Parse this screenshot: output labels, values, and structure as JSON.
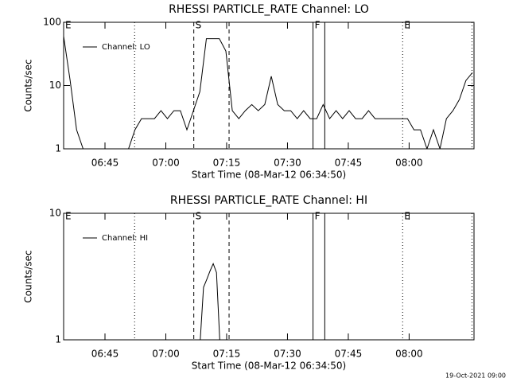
{
  "chart_data": [
    {
      "type": "line",
      "title": "RHESSI PARTICLE_RATE Channel: LO",
      "xlabel": "Start Time (08-Mar-12 06:34:50)",
      "ylabel": "Counts/sec",
      "log_y": true,
      "xlim": [
        394.8,
        496
      ],
      "ylim": [
        1,
        100
      ],
      "yticks": [
        1,
        10,
        100
      ],
      "xticks": [
        {
          "value": 405,
          "label": "06:45"
        },
        {
          "value": 420,
          "label": "07:00"
        },
        {
          "value": 435,
          "label": "07:15"
        },
        {
          "value": 450,
          "label": "07:30"
        },
        {
          "value": 465,
          "label": "07:45"
        },
        {
          "value": 480,
          "label": "08:00"
        }
      ],
      "legend": "upper left",
      "markers": [
        {
          "x": 412.3,
          "style": "dotted"
        },
        {
          "x": 426.9,
          "style": "dashed"
        },
        {
          "x": 435.6,
          "style": "dashed"
        },
        {
          "x": 456.3,
          "style": "solid"
        },
        {
          "x": 459.2,
          "style": "solid"
        },
        {
          "x": 478.4,
          "style": "dotted"
        },
        {
          "x": 495.5,
          "style": "dotted"
        }
      ],
      "marker_labels": [
        {
          "x": 394.8,
          "text": "E"
        },
        {
          "x": 426.9,
          "text": "S"
        },
        {
          "x": 456.3,
          "text": "F"
        },
        {
          "x": 478.4,
          "text": "E"
        }
      ],
      "series": [
        {
          "name": "Channel: LO",
          "color": "#000000",
          "x": [
            394.8,
            396.4,
            398,
            399.6,
            401.2,
            402.8,
            404.4,
            406,
            407.6,
            409.2,
            410.8,
            412.4,
            414,
            415.6,
            417.2,
            418.8,
            420.4,
            422,
            423.6,
            425.2,
            426.8,
            428.4,
            430,
            431.6,
            433.2,
            434.8,
            436.4,
            438,
            439.6,
            441.2,
            442.8,
            444.4,
            446,
            447.6,
            449.2,
            450.8,
            452.4,
            454,
            455.6,
            457.2,
            458.8,
            460.4,
            462,
            463.6,
            465.2,
            466.8,
            468.4,
            470,
            471.6,
            473.2,
            474.8,
            476.4,
            478,
            479.6,
            481.2,
            482.8,
            484.4,
            486,
            487.6,
            489.2,
            490.8,
            492.4,
            494,
            495.6
          ],
          "values": [
            60,
            12,
            2,
            1,
            1,
            1,
            1,
            1,
            1,
            1,
            1,
            2,
            3,
            3,
            3,
            4,
            3,
            4,
            4,
            2,
            4,
            8,
            55,
            55,
            55,
            35,
            4,
            3,
            4,
            5,
            4,
            5,
            14,
            5,
            4,
            4,
            3,
            4,
            3,
            3,
            5,
            3,
            4,
            3,
            4,
            3,
            3,
            4,
            3,
            3,
            3,
            3,
            3,
            3,
            2,
            2,
            1,
            2,
            1,
            3,
            4,
            6,
            12,
            16
          ]
        }
      ]
    },
    {
      "type": "line",
      "title": "RHESSI PARTICLE_RATE Channel: HI",
      "xlabel": "Start Time (08-Mar-12 06:34:50)",
      "ylabel": "Counts/sec",
      "log_y": true,
      "xlim": [
        394.8,
        496
      ],
      "ylim": [
        1,
        10
      ],
      "yticks": [
        1,
        10
      ],
      "xticks": [
        {
          "value": 405,
          "label": "06:45"
        },
        {
          "value": 420,
          "label": "07:00"
        },
        {
          "value": 435,
          "label": "07:15"
        },
        {
          "value": 450,
          "label": "07:30"
        },
        {
          "value": 465,
          "label": "07:45"
        },
        {
          "value": 480,
          "label": "08:00"
        }
      ],
      "legend": "upper left",
      "markers": [
        {
          "x": 412.3,
          "style": "dotted"
        },
        {
          "x": 426.9,
          "style": "dashed"
        },
        {
          "x": 435.6,
          "style": "dashed"
        },
        {
          "x": 456.3,
          "style": "solid"
        },
        {
          "x": 459.2,
          "style": "solid"
        },
        {
          "x": 478.4,
          "style": "dotted"
        },
        {
          "x": 495.5,
          "style": "dotted"
        }
      ],
      "marker_labels": [
        {
          "x": 394.8,
          "text": "E"
        },
        {
          "x": 426.9,
          "text": "S"
        },
        {
          "x": 456.3,
          "text": "F"
        },
        {
          "x": 478.4,
          "text": "E"
        }
      ],
      "series": [
        {
          "name": "Channel: HI",
          "color": "#000000",
          "x": [
            428.5,
            429.3,
            430.1,
            430.9,
            431.7,
            432.5,
            433.3
          ],
          "values": [
            1,
            2.6,
            3,
            3.5,
            4,
            3.4,
            1
          ]
        }
      ]
    }
  ],
  "footer": "19-Oct-2021 09:00"
}
